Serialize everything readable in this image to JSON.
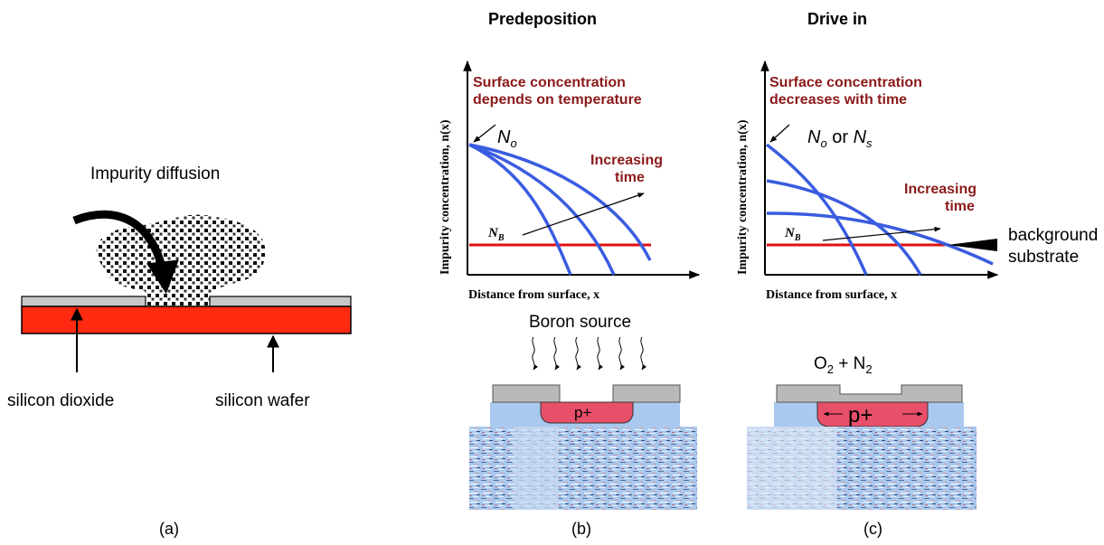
{
  "colors": {
    "oxide": "#c8c8c8",
    "wafer": "#ff2a10",
    "curve": "#3a5ce0",
    "background_line": "#e01010",
    "note_text": "#8b1a1a",
    "substrate_blue": "#a9c9ee",
    "p_region": "#e8506a"
  },
  "panel_a": {
    "title": "Impurity diffusion",
    "oxide_label": "silicon dioxide",
    "wafer_label": "silicon wafer",
    "caption": "(a)"
  },
  "panel_b": {
    "title": "Predeposition",
    "ylabel": "Impurity concentration, n(x)",
    "xlabel": "Distance from surface, x",
    "note_line1": "Surface concentration",
    "note_line2": "depends on temperature",
    "surface_label": "N",
    "surface_sub": "o",
    "time_line1": "Increasing",
    "time_line2": "time",
    "background_label": "N",
    "background_sub": "B",
    "source_label": "Boron source",
    "region_label": "p+",
    "caption": "(b)"
  },
  "panel_c": {
    "title": "Drive in",
    "ylabel": "Impurity concentration, n(x)",
    "xlabel": "Distance from surface, x",
    "note_line1": "Surface concentration",
    "note_line2": "decreases with time",
    "surface_label_a": "N",
    "surface_sub_a": "o",
    "surface_or": " or ",
    "surface_label_b": "N",
    "surface_sub_b": "s",
    "time_line1": "Increasing",
    "time_line2": "time",
    "background_label": "N",
    "background_sub": "B",
    "bg_pointer_line1": "background",
    "bg_pointer_line2": "substrate",
    "ambient_o": "O",
    "ambient_o_sub": "2",
    "ambient_mid": " + N",
    "ambient_n_sub": "2",
    "region_label": "p+",
    "caption": "(c)"
  }
}
